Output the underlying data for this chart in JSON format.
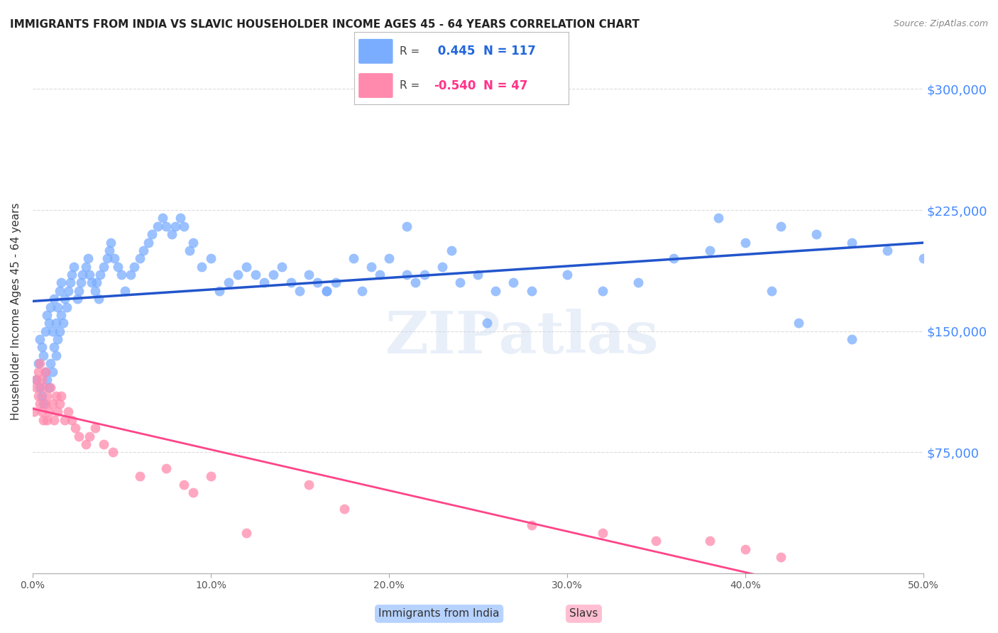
{
  "title": "IMMIGRANTS FROM INDIA VS SLAVIC HOUSEHOLDER INCOME AGES 45 - 64 YEARS CORRELATION CHART",
  "source": "Source: ZipAtlas.com",
  "ylabel": "Householder Income Ages 45 - 64 years",
  "x_min": 0.0,
  "x_max": 0.5,
  "y_min": 0,
  "y_max": 325000,
  "yticks": [
    0,
    75000,
    150000,
    225000,
    300000
  ],
  "ytick_labels": [
    "",
    "$75,000",
    "$150,000",
    "$225,000",
    "$300,000"
  ],
  "xticks": [
    0.0,
    0.1,
    0.2,
    0.3,
    0.4,
    0.5
  ],
  "xtick_labels": [
    "0.0%",
    "10.0%",
    "20.0%",
    "30.0%",
    "40.0%",
    "50.0%"
  ],
  "india_color": "#7aadff",
  "slavic_color": "#ff8aad",
  "india_line_color": "#2255cc",
  "slavic_line_color": "#ff4488",
  "india_R": 0.445,
  "india_N": 117,
  "slavic_R": -0.54,
  "slavic_N": 47,
  "legend_label_india": "Immigrants from India",
  "legend_label_slavic": "Slavs",
  "background_color": "#ffffff",
  "grid_color": "#cccccc",
  "watermark_text": "ZIPatlas",
  "india_x": [
    0.002,
    0.003,
    0.004,
    0.004,
    0.005,
    0.005,
    0.006,
    0.006,
    0.007,
    0.007,
    0.008,
    0.008,
    0.009,
    0.009,
    0.01,
    0.01,
    0.011,
    0.011,
    0.012,
    0.012,
    0.013,
    0.013,
    0.014,
    0.014,
    0.015,
    0.015,
    0.016,
    0.016,
    0.017,
    0.018,
    0.019,
    0.02,
    0.021,
    0.022,
    0.023,
    0.025,
    0.026,
    0.027,
    0.028,
    0.03,
    0.031,
    0.032,
    0.033,
    0.035,
    0.036,
    0.037,
    0.038,
    0.04,
    0.042,
    0.043,
    0.044,
    0.046,
    0.048,
    0.05,
    0.052,
    0.055,
    0.057,
    0.06,
    0.062,
    0.065,
    0.067,
    0.07,
    0.073,
    0.075,
    0.078,
    0.08,
    0.083,
    0.085,
    0.088,
    0.09,
    0.095,
    0.1,
    0.105,
    0.11,
    0.115,
    0.12,
    0.125,
    0.13,
    0.135,
    0.14,
    0.145,
    0.15,
    0.155,
    0.16,
    0.165,
    0.17,
    0.18,
    0.19,
    0.195,
    0.2,
    0.21,
    0.215,
    0.22,
    0.23,
    0.24,
    0.25,
    0.26,
    0.27,
    0.28,
    0.3,
    0.32,
    0.34,
    0.36,
    0.38,
    0.4,
    0.42,
    0.44,
    0.46,
    0.48,
    0.5,
    0.385,
    0.415,
    0.43,
    0.46,
    0.21,
    0.235,
    0.255,
    0.185,
    0.165
  ],
  "india_y": [
    120000,
    130000,
    115000,
    145000,
    110000,
    140000,
    105000,
    135000,
    125000,
    150000,
    120000,
    160000,
    115000,
    155000,
    130000,
    165000,
    125000,
    150000,
    140000,
    170000,
    135000,
    155000,
    145000,
    165000,
    150000,
    175000,
    160000,
    180000,
    155000,
    170000,
    165000,
    175000,
    180000,
    185000,
    190000,
    170000,
    175000,
    180000,
    185000,
    190000,
    195000,
    185000,
    180000,
    175000,
    180000,
    170000,
    185000,
    190000,
    195000,
    200000,
    205000,
    195000,
    190000,
    185000,
    175000,
    185000,
    190000,
    195000,
    200000,
    205000,
    210000,
    215000,
    220000,
    215000,
    210000,
    215000,
    220000,
    215000,
    200000,
    205000,
    190000,
    195000,
    175000,
    180000,
    185000,
    190000,
    185000,
    180000,
    185000,
    190000,
    180000,
    175000,
    185000,
    180000,
    175000,
    180000,
    195000,
    190000,
    185000,
    195000,
    185000,
    180000,
    185000,
    190000,
    180000,
    185000,
    175000,
    180000,
    175000,
    185000,
    175000,
    180000,
    195000,
    200000,
    205000,
    215000,
    210000,
    205000,
    200000,
    195000,
    220000,
    175000,
    155000,
    145000,
    215000,
    200000,
    155000,
    175000,
    175000
  ],
  "slavic_x": [
    0.001,
    0.002,
    0.002,
    0.003,
    0.003,
    0.004,
    0.004,
    0.005,
    0.005,
    0.006,
    0.006,
    0.007,
    0.007,
    0.008,
    0.008,
    0.009,
    0.01,
    0.011,
    0.012,
    0.013,
    0.014,
    0.015,
    0.016,
    0.018,
    0.02,
    0.022,
    0.024,
    0.026,
    0.03,
    0.032,
    0.035,
    0.04,
    0.045,
    0.06,
    0.075,
    0.085,
    0.09,
    0.1,
    0.12,
    0.155,
    0.175,
    0.28,
    0.32,
    0.35,
    0.38,
    0.4,
    0.42
  ],
  "slavic_y": [
    100000,
    115000,
    120000,
    110000,
    125000,
    105000,
    130000,
    100000,
    120000,
    95000,
    115000,
    105000,
    125000,
    95000,
    110000,
    100000,
    115000,
    105000,
    95000,
    110000,
    100000,
    105000,
    110000,
    95000,
    100000,
    95000,
    90000,
    85000,
    80000,
    85000,
    90000,
    80000,
    75000,
    60000,
    65000,
    55000,
    50000,
    60000,
    25000,
    55000,
    40000,
    30000,
    25000,
    20000,
    20000,
    15000,
    10000
  ]
}
